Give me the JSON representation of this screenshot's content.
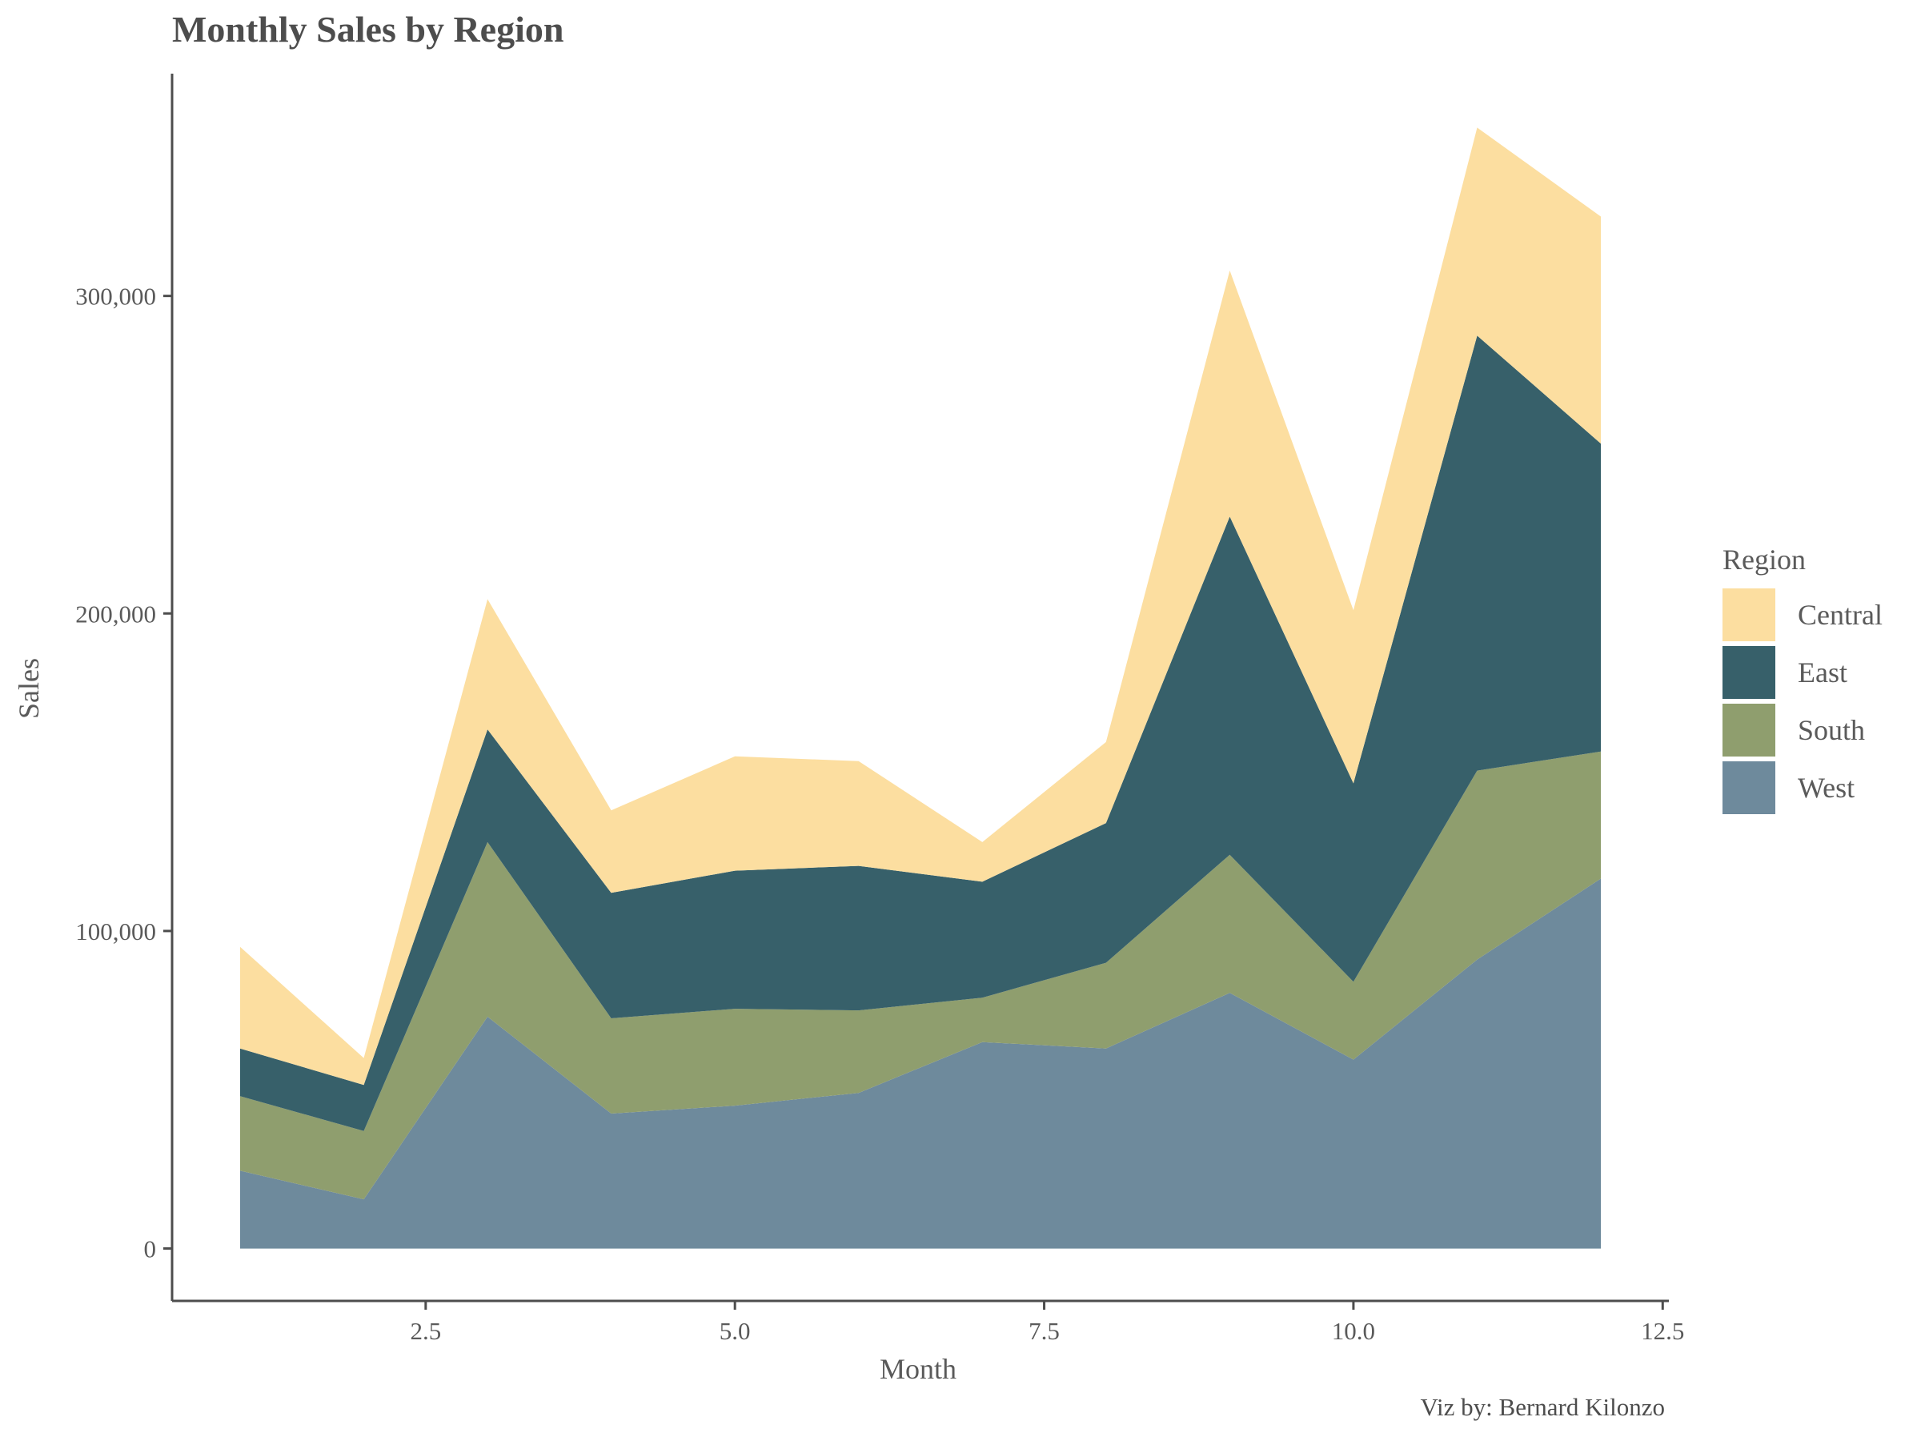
{
  "chart_data": {
    "type": "area",
    "title": "Monthly Sales by Region",
    "xlabel": "Month",
    "ylabel": "Sales",
    "caption": "Viz by: Bernard Kilonzo",
    "legend_title": "Region",
    "legend_position": "right",
    "stacked": true,
    "grid": false,
    "xlim": [
      0.45,
      12.55
    ],
    "ylim": [
      -16500,
      370000
    ],
    "x_ticks": [
      2.5,
      5.0,
      7.5,
      10.0,
      12.5
    ],
    "x_tick_labels": [
      "2.5",
      "5.0",
      "7.5",
      "10.0",
      "12.5"
    ],
    "y_ticks": [
      0,
      100000,
      200000,
      300000
    ],
    "y_tick_labels": [
      "0",
      "100,000",
      "200,000",
      "300,000"
    ],
    "x": [
      1,
      2,
      3,
      4,
      5,
      6,
      7,
      8,
      9,
      10,
      11,
      12
    ],
    "series": [
      {
        "name": "West",
        "color": "#6e8a9c",
        "values": [
          24500,
          15500,
          73000,
          42500,
          45000,
          49000,
          65000,
          63000,
          80500,
          59500,
          91000,
          116500
        ]
      },
      {
        "name": "South",
        "color": "#8f9e6e",
        "values": [
          23500,
          21500,
          55000,
          30000,
          30500,
          26000,
          14000,
          27000,
          43500,
          24500,
          59500,
          40000
        ]
      },
      {
        "name": "East",
        "color": "#37606a",
        "values": [
          15000,
          14500,
          35500,
          39500,
          43500,
          45500,
          36500,
          44000,
          106500,
          62500,
          137000,
          97000
        ]
      },
      {
        "name": "Central",
        "color": "#fcdea0",
        "values": [
          32000,
          8500,
          41000,
          26000,
          36000,
          33000,
          12500,
          25500,
          77500,
          54500,
          65500,
          71500
        ]
      }
    ],
    "legend_order": [
      "Central",
      "East",
      "South",
      "West"
    ]
  }
}
